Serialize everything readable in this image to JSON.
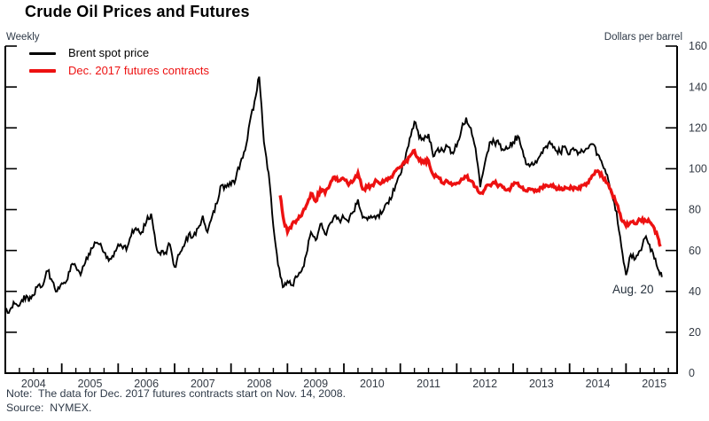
{
  "title": "Crude Oil Prices and Futures",
  "frequency_label": "Weekly",
  "unit_label": "Dollars per barrel",
  "legend": [
    {
      "label": "Brent spot price",
      "color": "#000000"
    },
    {
      "label": "Dec. 2017 futures contracts",
      "color": "#ed1111"
    }
  ],
  "annotation": {
    "text": "Aug. 20"
  },
  "note": "Note:  The data for Dec. 2017 futures contracts start on Nov. 14, 2008.",
  "source": "Source:  NYMEX.",
  "colors": {
    "axis": "#000000",
    "tick_label": "#333a44"
  },
  "chart_data": {
    "type": "line",
    "title": "Crude Oil Prices and Futures",
    "xlabel": "",
    "ylabel": "Dollars per barrel",
    "x_range": [
      2004,
      2015.9
    ],
    "y_range": [
      0,
      160
    ],
    "y_ticks": [
      0,
      20,
      40,
      60,
      80,
      100,
      120,
      140,
      160
    ],
    "x_tick_years": [
      2004,
      2005,
      2006,
      2007,
      2008,
      2009,
      2010,
      2011,
      2012,
      2013,
      2014,
      2015
    ],
    "minor_ticks_per_year": 4,
    "grid": false,
    "legend_position": "top-left",
    "series": [
      {
        "name": "Brent spot price",
        "color": "#000000",
        "stroke_width": 1.9,
        "jitter": 1.7,
        "points": [
          [
            2004.0,
            31
          ],
          [
            2004.083,
            31
          ],
          [
            2004.167,
            34
          ],
          [
            2004.25,
            33
          ],
          [
            2004.333,
            38
          ],
          [
            2004.417,
            35
          ],
          [
            2004.5,
            38
          ],
          [
            2004.583,
            43
          ],
          [
            2004.667,
            43
          ],
          [
            2004.75,
            50
          ],
          [
            2004.833,
            45
          ],
          [
            2004.917,
            40
          ],
          [
            2005.0,
            44
          ],
          [
            2005.083,
            45
          ],
          [
            2005.167,
            53
          ],
          [
            2005.25,
            52
          ],
          [
            2005.333,
            48
          ],
          [
            2005.417,
            54
          ],
          [
            2005.5,
            58
          ],
          [
            2005.583,
            64
          ],
          [
            2005.667,
            63
          ],
          [
            2005.75,
            59
          ],
          [
            2005.833,
            55
          ],
          [
            2005.917,
            57
          ],
          [
            2006.0,
            63
          ],
          [
            2006.083,
            61
          ],
          [
            2006.167,
            62
          ],
          [
            2006.25,
            70
          ],
          [
            2006.333,
            70
          ],
          [
            2006.417,
            69
          ],
          [
            2006.5,
            74
          ],
          [
            2006.583,
            78
          ],
          [
            2006.667,
            63
          ],
          [
            2006.75,
            58
          ],
          [
            2006.833,
            59
          ],
          [
            2006.917,
            63
          ],
          [
            2007.0,
            52
          ],
          [
            2007.083,
            58
          ],
          [
            2007.167,
            62
          ],
          [
            2007.25,
            68
          ],
          [
            2007.333,
            67
          ],
          [
            2007.417,
            71
          ],
          [
            2007.5,
            77
          ],
          [
            2007.583,
            69
          ],
          [
            2007.667,
            77
          ],
          [
            2007.75,
            83
          ],
          [
            2007.833,
            92
          ],
          [
            2007.917,
            91
          ],
          [
            2008.0,
            92
          ],
          [
            2008.083,
            95
          ],
          [
            2008.167,
            103
          ],
          [
            2008.25,
            109
          ],
          [
            2008.333,
            123
          ],
          [
            2008.417,
            133
          ],
          [
            2008.5,
            145
          ],
          [
            2008.583,
            113
          ],
          [
            2008.667,
            98
          ],
          [
            2008.75,
            72
          ],
          [
            2008.833,
            53
          ],
          [
            2008.917,
            42
          ],
          [
            2009.0,
            45
          ],
          [
            2009.083,
            43
          ],
          [
            2009.167,
            47
          ],
          [
            2009.25,
            50
          ],
          [
            2009.333,
            58
          ],
          [
            2009.417,
            69
          ],
          [
            2009.5,
            65
          ],
          [
            2009.583,
            73
          ],
          [
            2009.667,
            68
          ],
          [
            2009.75,
            73
          ],
          [
            2009.833,
            77
          ],
          [
            2009.917,
            75
          ],
          [
            2010.0,
            76
          ],
          [
            2010.083,
            74
          ],
          [
            2010.167,
            79
          ],
          [
            2010.25,
            85
          ],
          [
            2010.333,
            76
          ],
          [
            2010.417,
            75
          ],
          [
            2010.5,
            76
          ],
          [
            2010.583,
            77
          ],
          [
            2010.667,
            78
          ],
          [
            2010.75,
            83
          ],
          [
            2010.833,
            85
          ],
          [
            2010.917,
            92
          ],
          [
            2011.0,
            97
          ],
          [
            2011.083,
            104
          ],
          [
            2011.167,
            115
          ],
          [
            2011.25,
            123
          ],
          [
            2011.333,
            115
          ],
          [
            2011.417,
            114
          ],
          [
            2011.5,
            117
          ],
          [
            2011.583,
            106
          ],
          [
            2011.667,
            110
          ],
          [
            2011.75,
            109
          ],
          [
            2011.833,
            111
          ],
          [
            2011.917,
            108
          ],
          [
            2012.0,
            111
          ],
          [
            2012.083,
            119
          ],
          [
            2012.167,
            125
          ],
          [
            2012.25,
            120
          ],
          [
            2012.333,
            110
          ],
          [
            2012.417,
            91
          ],
          [
            2012.5,
            103
          ],
          [
            2012.583,
            113
          ],
          [
            2012.667,
            113
          ],
          [
            2012.75,
            112
          ],
          [
            2012.833,
            109
          ],
          [
            2012.917,
            110
          ],
          [
            2013.0,
            113
          ],
          [
            2013.083,
            116
          ],
          [
            2013.167,
            109
          ],
          [
            2013.25,
            102
          ],
          [
            2013.333,
            103
          ],
          [
            2013.417,
            103
          ],
          [
            2013.5,
            108
          ],
          [
            2013.583,
            111
          ],
          [
            2013.667,
            112
          ],
          [
            2013.75,
            109
          ],
          [
            2013.833,
            108
          ],
          [
            2013.917,
            111
          ],
          [
            2014.0,
            107
          ],
          [
            2014.083,
            109
          ],
          [
            2014.167,
            108
          ],
          [
            2014.25,
            108
          ],
          [
            2014.333,
            110
          ],
          [
            2014.417,
            112
          ],
          [
            2014.5,
            107
          ],
          [
            2014.583,
            102
          ],
          [
            2014.667,
            97
          ],
          [
            2014.75,
            87
          ],
          [
            2014.833,
            79
          ],
          [
            2014.917,
            62
          ],
          [
            2015.0,
            48
          ],
          [
            2015.083,
            58
          ],
          [
            2015.167,
            56
          ],
          [
            2015.25,
            60
          ],
          [
            2015.333,
            66
          ],
          [
            2015.417,
            63
          ],
          [
            2015.5,
            56
          ],
          [
            2015.583,
            50
          ],
          [
            2015.635,
            47
          ]
        ]
      },
      {
        "name": "Dec. 2017 futures contracts",
        "color": "#ed1111",
        "stroke_width": 3.4,
        "jitter": 1.1,
        "points": [
          [
            2008.871,
            87
          ],
          [
            2008.94,
            74
          ],
          [
            2009.0,
            69
          ],
          [
            2009.083,
            73
          ],
          [
            2009.167,
            75
          ],
          [
            2009.25,
            77
          ],
          [
            2009.333,
            82
          ],
          [
            2009.417,
            88
          ],
          [
            2009.5,
            84
          ],
          [
            2009.583,
            90
          ],
          [
            2009.667,
            88
          ],
          [
            2009.75,
            92
          ],
          [
            2009.833,
            96
          ],
          [
            2009.917,
            94
          ],
          [
            2010.0,
            95
          ],
          [
            2010.083,
            92
          ],
          [
            2010.167,
            94
          ],
          [
            2010.25,
            98
          ],
          [
            2010.333,
            90
          ],
          [
            2010.417,
            91
          ],
          [
            2010.5,
            92
          ],
          [
            2010.583,
            94
          ],
          [
            2010.667,
            93
          ],
          [
            2010.75,
            95
          ],
          [
            2010.833,
            96
          ],
          [
            2010.917,
            99
          ],
          [
            2011.0,
            101
          ],
          [
            2011.083,
            103
          ],
          [
            2011.167,
            106
          ],
          [
            2011.25,
            109
          ],
          [
            2011.333,
            104
          ],
          [
            2011.417,
            103
          ],
          [
            2011.5,
            104
          ],
          [
            2011.583,
            97
          ],
          [
            2011.667,
            96
          ],
          [
            2011.75,
            93
          ],
          [
            2011.833,
            94
          ],
          [
            2011.917,
            92
          ],
          [
            2012.0,
            93
          ],
          [
            2012.083,
            95
          ],
          [
            2012.167,
            96
          ],
          [
            2012.25,
            94
          ],
          [
            2012.333,
            91
          ],
          [
            2012.417,
            88
          ],
          [
            2012.5,
            90
          ],
          [
            2012.583,
            92
          ],
          [
            2012.667,
            93
          ],
          [
            2012.75,
            92
          ],
          [
            2012.833,
            91
          ],
          [
            2012.917,
            90
          ],
          [
            2013.0,
            92
          ],
          [
            2013.083,
            93
          ],
          [
            2013.167,
            91
          ],
          [
            2013.25,
            89
          ],
          [
            2013.333,
            90
          ],
          [
            2013.417,
            89
          ],
          [
            2013.5,
            91
          ],
          [
            2013.583,
            92
          ],
          [
            2013.667,
            92
          ],
          [
            2013.75,
            91
          ],
          [
            2013.833,
            90
          ],
          [
            2013.917,
            91
          ],
          [
            2014.0,
            90
          ],
          [
            2014.083,
            91
          ],
          [
            2014.167,
            91
          ],
          [
            2014.25,
            92
          ],
          [
            2014.333,
            93
          ],
          [
            2014.417,
            97
          ],
          [
            2014.5,
            99
          ],
          [
            2014.583,
            96
          ],
          [
            2014.667,
            93
          ],
          [
            2014.75,
            88
          ],
          [
            2014.833,
            83
          ],
          [
            2014.917,
            75
          ],
          [
            2015.0,
            72
          ],
          [
            2015.083,
            74
          ],
          [
            2015.167,
            73
          ],
          [
            2015.25,
            75
          ],
          [
            2015.333,
            75
          ],
          [
            2015.417,
            74
          ],
          [
            2015.5,
            71
          ],
          [
            2015.583,
            65
          ],
          [
            2015.61,
            62
          ]
        ]
      }
    ]
  }
}
